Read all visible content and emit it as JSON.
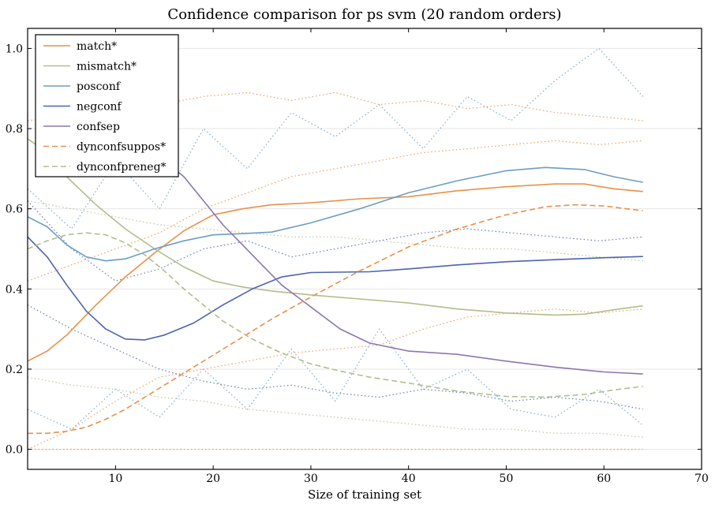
{
  "chart_data": {
    "type": "line",
    "title": "Confidence comparison for ps svm (20 random orders)",
    "xlabel": "Size of training set",
    "ylabel": "",
    "xlim": [
      1,
      70
    ],
    "ylim": [
      -0.05,
      1.05
    ],
    "xticks": [
      10,
      20,
      30,
      40,
      50,
      60,
      70
    ],
    "yticks": [
      0.0,
      0.2,
      0.4,
      0.6,
      0.8,
      1.0
    ],
    "xtick_labels": [
      "10",
      "20",
      "30",
      "40",
      "50",
      "60",
      "70"
    ],
    "ytick_labels": [
      "0.0",
      "0.2",
      "0.4",
      "0.6",
      "0.8",
      "1.0"
    ],
    "grid": "horizontal",
    "legend_position": "top-left",
    "series": [
      {
        "name": "match*",
        "color": "#e8914a",
        "style": "solid",
        "x": [
          1,
          3,
          5,
          8,
          11,
          14,
          17,
          20,
          23,
          26,
          30,
          35,
          40,
          45,
          50,
          55,
          58,
          61,
          64
        ],
        "y": [
          0.22,
          0.245,
          0.285,
          0.36,
          0.43,
          0.49,
          0.545,
          0.585,
          0.6,
          0.61,
          0.615,
          0.625,
          0.63,
          0.645,
          0.655,
          0.662,
          0.662,
          0.65,
          0.643
        ]
      },
      {
        "name": "mismatch*",
        "color": "#b2bd8a",
        "style": "solid",
        "x": [
          1,
          3,
          5,
          8,
          11,
          14,
          17,
          20,
          23,
          26,
          30,
          35,
          40,
          45,
          50,
          55,
          58,
          61,
          64
        ],
        "y": [
          0.775,
          0.74,
          0.68,
          0.61,
          0.55,
          0.5,
          0.455,
          0.42,
          0.405,
          0.395,
          0.385,
          0.375,
          0.365,
          0.35,
          0.34,
          0.335,
          0.337,
          0.348,
          0.358
        ]
      },
      {
        "name": "posconf",
        "color": "#6b9ec4",
        "style": "solid",
        "x": [
          1,
          3,
          5,
          7,
          9,
          11,
          14,
          17,
          20,
          23,
          26,
          30,
          35,
          40,
          45,
          50,
          54,
          58,
          61,
          64
        ],
        "y": [
          0.58,
          0.555,
          0.51,
          0.48,
          0.47,
          0.475,
          0.5,
          0.52,
          0.535,
          0.538,
          0.542,
          0.565,
          0.6,
          0.64,
          0.67,
          0.695,
          0.703,
          0.698,
          0.68,
          0.666
        ]
      },
      {
        "name": "negconf",
        "color": "#4a64b0",
        "style": "solid",
        "x": [
          1,
          3,
          5,
          7,
          9,
          11,
          13,
          15,
          18,
          21,
          24,
          27,
          30,
          33,
          36,
          40,
          45,
          50,
          55,
          60,
          64
        ],
        "y": [
          0.53,
          0.48,
          0.41,
          0.345,
          0.3,
          0.275,
          0.273,
          0.285,
          0.315,
          0.36,
          0.4,
          0.43,
          0.441,
          0.442,
          0.443,
          0.45,
          0.46,
          0.468,
          0.473,
          0.478,
          0.481
        ]
      },
      {
        "name": "confsep",
        "color": "#8a78b0",
        "style": "solid",
        "x": [
          15,
          17,
          19,
          21,
          23,
          25,
          27,
          30,
          33,
          36,
          40,
          45,
          50,
          55,
          60,
          64
        ],
        "y": [
          0.72,
          0.68,
          0.62,
          0.56,
          0.51,
          0.46,
          0.41,
          0.355,
          0.3,
          0.265,
          0.245,
          0.237,
          0.22,
          0.205,
          0.193,
          0.188
        ]
      },
      {
        "name": "dynconfsuppos*",
        "color": "#e8914a",
        "style": "dashed",
        "x": [
          1,
          3,
          5,
          7,
          9,
          11,
          14,
          17,
          20,
          23,
          26,
          30,
          35,
          40,
          45,
          50,
          54,
          57,
          60,
          64
        ],
        "y": [
          0.04,
          0.04,
          0.045,
          0.055,
          0.075,
          0.1,
          0.145,
          0.19,
          0.235,
          0.28,
          0.325,
          0.38,
          0.445,
          0.505,
          0.55,
          0.585,
          0.605,
          0.61,
          0.607,
          0.595
        ]
      },
      {
        "name": "dynconfpreneg*",
        "color": "#b2bd8a",
        "style": "dashed",
        "x": [
          1,
          3,
          5,
          7,
          9,
          11,
          13,
          15,
          17,
          19,
          21,
          24,
          27,
          30,
          33,
          36,
          40,
          45,
          50,
          54,
          58,
          61,
          64
        ],
        "y": [
          0.5,
          0.52,
          0.535,
          0.54,
          0.535,
          0.515,
          0.485,
          0.445,
          0.4,
          0.36,
          0.32,
          0.275,
          0.24,
          0.213,
          0.195,
          0.18,
          0.165,
          0.145,
          0.132,
          0.13,
          0.137,
          0.148,
          0.157
        ]
      }
    ],
    "noise_lines": [
      {
        "color": "#e8914a",
        "y": [
          0.82,
          0.83,
          0.84,
          0.86,
          0.88,
          0.89,
          0.87,
          0.89,
          0.86,
          0.87,
          0.85,
          0.86,
          0.84,
          0.83,
          0.82
        ]
      },
      {
        "color": "#e8914a",
        "y": [
          0.42,
          0.46,
          0.5,
          0.54,
          0.6,
          0.64,
          0.68,
          0.7,
          0.72,
          0.74,
          0.75,
          0.76,
          0.77,
          0.76,
          0.77
        ]
      },
      {
        "color": "#e8914a",
        "y": [
          0.0,
          0.05,
          0.12,
          0.18,
          0.2,
          0.22,
          0.24,
          0.25,
          0.26,
          0.3,
          0.33,
          0.34,
          0.35,
          0.34,
          0.35
        ]
      },
      {
        "color": "#e8914a",
        "y": [
          0.0,
          0.0,
          0.0,
          0.0,
          0.0,
          0.0,
          0.0,
          0.0,
          0.0,
          0.0,
          0.0,
          0.0,
          0.0,
          0.0,
          0.0
        ]
      },
      {
        "color": "#b2bd8a",
        "y": [
          0.62,
          0.6,
          0.58,
          0.56,
          0.55,
          0.54,
          0.53,
          0.53,
          0.52,
          0.51,
          0.5,
          0.5,
          0.49,
          0.48,
          0.47
        ]
      },
      {
        "color": "#b2bd8a",
        "y": [
          0.18,
          0.16,
          0.15,
          0.13,
          0.12,
          0.1,
          0.09,
          0.08,
          0.07,
          0.06,
          0.05,
          0.05,
          0.04,
          0.04,
          0.03
        ]
      },
      {
        "color": "#6b9ec4",
        "y": [
          0.65,
          0.55,
          0.72,
          0.6,
          0.8,
          0.7,
          0.84,
          0.78,
          0.86,
          0.75,
          0.88,
          0.82,
          0.92,
          1.0,
          0.88
        ]
      },
      {
        "color": "#4a64b0",
        "y": [
          0.36,
          0.3,
          0.25,
          0.2,
          0.17,
          0.15,
          0.16,
          0.14,
          0.13,
          0.15,
          0.14,
          0.12,
          0.13,
          0.12,
          0.1
        ]
      },
      {
        "color": "#4a64b0",
        "y": [
          0.62,
          0.5,
          0.42,
          0.45,
          0.5,
          0.52,
          0.48,
          0.5,
          0.52,
          0.54,
          0.55,
          0.54,
          0.53,
          0.52,
          0.53
        ]
      },
      {
        "color": "#6b9ec4",
        "y": [
          0.1,
          0.05,
          0.15,
          0.08,
          0.2,
          0.1,
          0.25,
          0.12,
          0.3,
          0.15,
          0.2,
          0.1,
          0.08,
          0.15,
          0.06
        ]
      }
    ]
  }
}
